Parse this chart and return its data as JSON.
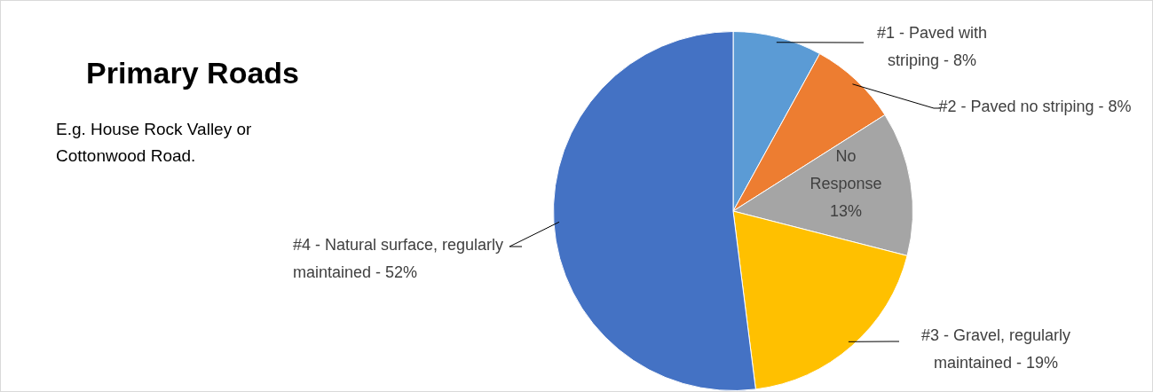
{
  "chart_data": {
    "type": "pie",
    "title": "Primary Roads",
    "subtitle": "E.g. House Rock Valley or Cottonwood Road.",
    "categories": [
      "#1 - Paved with striping -",
      "#2 - Paved no striping -",
      "No Response",
      "#3 - Gravel, regularly maintained -",
      "#4 - Natural surface, regularly maintained -"
    ],
    "values": [
      8,
      8,
      13,
      19,
      52
    ],
    "colors": [
      "#5b9bd5",
      "#ed7d31",
      "#a5a5a5",
      "#ffc000",
      "#4472c4"
    ],
    "value_labels": [
      "8%",
      "8%",
      "13%",
      "19%",
      "52%"
    ],
    "legend": false
  }
}
